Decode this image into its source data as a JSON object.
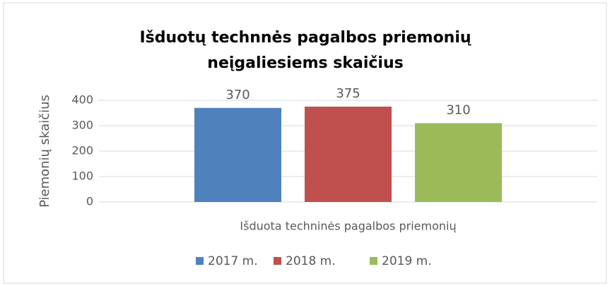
{
  "chart_data": {
    "type": "bar",
    "title": [
      "Išduotų technnės pagalbos priemonių",
      "neįgaliesiems skaičius"
    ],
    "y_label": "Piemonių skaičius",
    "categories": [
      "Išduota techninės pagalbos priemonių"
    ],
    "series": [
      {
        "name": "2017 m.",
        "color": "#4f81bd",
        "values": [
          370
        ]
      },
      {
        "name": "2018 m.",
        "color": "#c0504d",
        "values": [
          375
        ]
      },
      {
        "name": "2019 m.",
        "color": "#9bbb59",
        "values": [
          310
        ]
      }
    ],
    "ylim": [
      0,
      400
    ],
    "yticks": [
      0,
      100,
      200,
      300,
      400
    ],
    "grid": true,
    "legend": "bottom"
  }
}
